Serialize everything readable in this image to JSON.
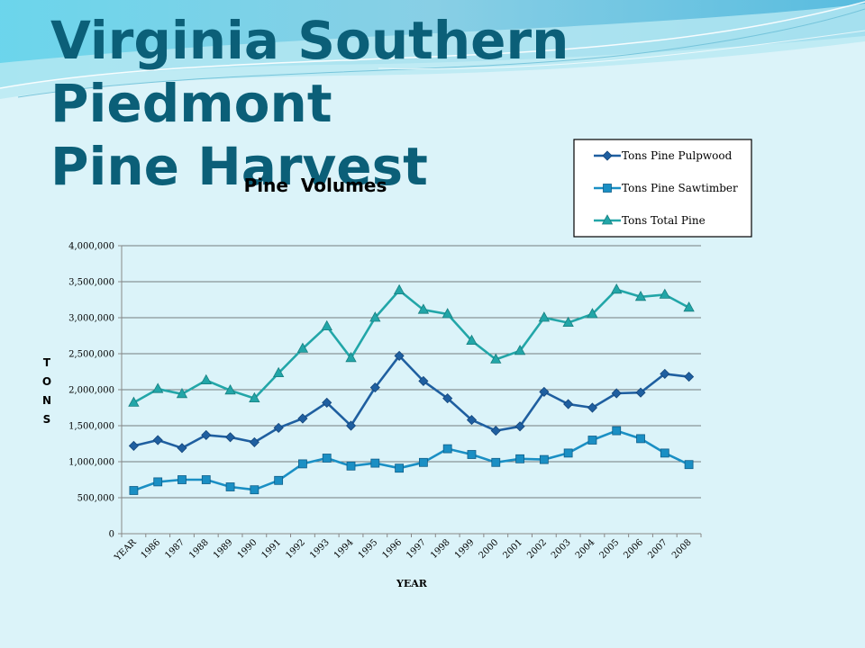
{
  "slide": {
    "title_line1": "Virginia Southern Piedmont",
    "title_line2": "Pine Harvest"
  },
  "colors": {
    "background": "#dbf3f9",
    "title": "#0b5f78",
    "pulpwood": "#1f5fa0",
    "sawtimber": "#1a8fc4",
    "total": "#22a6a8"
  },
  "chart_data": {
    "type": "line",
    "title": "Pine  Volumes",
    "xlabel": "YEAR",
    "ylabel": "TONS",
    "ylim": [
      0,
      4000000
    ],
    "yticks": [
      "0",
      "500,000",
      "1,000,000",
      "1,500,000",
      "2,000,000",
      "2,500,000",
      "3,000,000",
      "3,500,000",
      "4,000,000"
    ],
    "ytick_values": [
      0,
      500000,
      1000000,
      1500000,
      2000000,
      2500000,
      3000000,
      3500000,
      4000000
    ],
    "grid": "horizontal",
    "legend_position": "top-right",
    "categories": [
      "YEAR",
      "1986",
      "1987",
      "1988",
      "1989",
      "1990",
      "1991",
      "1992",
      "1993",
      "1994",
      "1995",
      "1996",
      "1997",
      "1998",
      "1999",
      "2000",
      "2001",
      "2002",
      "2003",
      "2004",
      "2005",
      "2006",
      "2007",
      "2008"
    ],
    "series": [
      {
        "name": "Tons Pine Pulpwood",
        "marker": "diamond",
        "values": [
          1220000,
          1300000,
          1190000,
          1370000,
          1340000,
          1270000,
          1470000,
          1600000,
          1820000,
          1500000,
          2030000,
          2470000,
          2120000,
          1880000,
          1580000,
          1430000,
          1490000,
          1970000,
          1800000,
          1750000,
          1950000,
          1960000,
          2220000,
          2180000
        ]
      },
      {
        "name": "Tons Pine Sawtimber",
        "marker": "square",
        "values": [
          600000,
          720000,
          750000,
          750000,
          650000,
          610000,
          740000,
          970000,
          1050000,
          940000,
          980000,
          910000,
          990000,
          1180000,
          1100000,
          990000,
          1040000,
          1030000,
          1120000,
          1300000,
          1430000,
          1320000,
          1120000,
          960000
        ]
      },
      {
        "name": "Tons Total Pine",
        "marker": "triangle",
        "values": [
          1820000,
          2010000,
          1940000,
          2130000,
          1990000,
          1880000,
          2230000,
          2570000,
          2880000,
          2440000,
          3000000,
          3380000,
          3110000,
          3050000,
          2680000,
          2420000,
          2540000,
          3000000,
          2930000,
          3050000,
          3390000,
          3290000,
          3320000,
          3140000
        ]
      }
    ]
  }
}
